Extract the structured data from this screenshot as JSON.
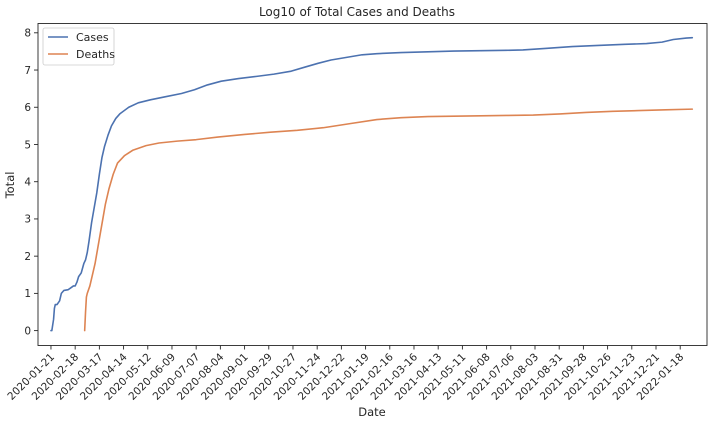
{
  "chart_data": {
    "type": "line",
    "title": "Log10 of Total Cases and Deaths",
    "xlabel": "Date",
    "ylabel": "Total",
    "x_tick_labels": [
      "2020-01-21",
      "2020-02-18",
      "2020-03-17",
      "2020-04-14",
      "2020-05-12",
      "2020-06-09",
      "2020-07-07",
      "2020-08-04",
      "2020-09-01",
      "2020-09-29",
      "2020-10-27",
      "2020-11-24",
      "2020-12-22",
      "2021-01-19",
      "2021-02-16",
      "2021-03-16",
      "2021-04-13",
      "2021-05-11",
      "2021-06-08",
      "2021-07-06",
      "2021-08-03",
      "2021-08-31",
      "2021-09-28",
      "2021-10-26",
      "2021-11-23",
      "2021-12-21",
      "2022-01-18"
    ],
    "y_ticks": [
      0,
      1,
      2,
      3,
      4,
      5,
      6,
      7,
      8
    ],
    "ylim": [
      -0.4,
      8.25
    ],
    "xlim": [
      "2020-01-06",
      "2022-02-18"
    ],
    "grid": false,
    "legend_position": "top-left",
    "series": [
      {
        "name": "Cases",
        "color": "#4c72b0",
        "points": [
          [
            "2020-01-21",
            0
          ],
          [
            "2020-01-22",
            0
          ],
          [
            "2020-01-24",
            0.3
          ],
          [
            "2020-01-25",
            0.6
          ],
          [
            "2020-01-26",
            0.7
          ],
          [
            "2020-01-28",
            0.7
          ],
          [
            "2020-01-31",
            0.8
          ],
          [
            "2020-02-02",
            1.0
          ],
          [
            "2020-02-05",
            1.08
          ],
          [
            "2020-02-10",
            1.1
          ],
          [
            "2020-02-13",
            1.15
          ],
          [
            "2020-02-16",
            1.2
          ],
          [
            "2020-02-18",
            1.2
          ],
          [
            "2020-02-20",
            1.3
          ],
          [
            "2020-02-22",
            1.45
          ],
          [
            "2020-02-25",
            1.55
          ],
          [
            "2020-02-28",
            1.8
          ],
          [
            "2020-03-01",
            1.9
          ],
          [
            "2020-03-03",
            2.1
          ],
          [
            "2020-03-05",
            2.4
          ],
          [
            "2020-03-08",
            2.9
          ],
          [
            "2020-03-11",
            3.3
          ],
          [
            "2020-03-14",
            3.7
          ],
          [
            "2020-03-17",
            4.2
          ],
          [
            "2020-03-20",
            4.65
          ],
          [
            "2020-03-23",
            4.95
          ],
          [
            "2020-03-27",
            5.25
          ],
          [
            "2020-03-31",
            5.5
          ],
          [
            "2020-04-05",
            5.7
          ],
          [
            "2020-04-10",
            5.83
          ],
          [
            "2020-04-20",
            6.0
          ],
          [
            "2020-05-01",
            6.12
          ],
          [
            "2020-05-15",
            6.2
          ],
          [
            "2020-06-01",
            6.28
          ],
          [
            "2020-06-20",
            6.37
          ],
          [
            "2020-07-05",
            6.47
          ],
          [
            "2020-07-20",
            6.6
          ],
          [
            "2020-08-05",
            6.7
          ],
          [
            "2020-08-25",
            6.77
          ],
          [
            "2020-09-15",
            6.83
          ],
          [
            "2020-10-05",
            6.89
          ],
          [
            "2020-10-25",
            6.97
          ],
          [
            "2020-11-10",
            7.08
          ],
          [
            "2020-11-25",
            7.18
          ],
          [
            "2020-12-10",
            7.27
          ],
          [
            "2020-12-28",
            7.34
          ],
          [
            "2021-01-15",
            7.41
          ],
          [
            "2021-02-01",
            7.44
          ],
          [
            "2021-03-01",
            7.47
          ],
          [
            "2021-04-01",
            7.49
          ],
          [
            "2021-05-01",
            7.51
          ],
          [
            "2021-06-01",
            7.52
          ],
          [
            "2021-07-01",
            7.53
          ],
          [
            "2021-07-20",
            7.54
          ],
          [
            "2021-08-15",
            7.58
          ],
          [
            "2021-09-15",
            7.63
          ],
          [
            "2021-10-15",
            7.66
          ],
          [
            "2021-11-15",
            7.69
          ],
          [
            "2021-12-10",
            7.71
          ],
          [
            "2021-12-28",
            7.75
          ],
          [
            "2022-01-10",
            7.82
          ],
          [
            "2022-01-25",
            7.86
          ],
          [
            "2022-02-01",
            7.87
          ]
        ]
      },
      {
        "name": "Deaths",
        "color": "#dd8452",
        "points": [
          [
            "2020-02-29",
            0
          ],
          [
            "2020-03-01",
            0.5
          ],
          [
            "2020-03-02",
            0.9
          ],
          [
            "2020-03-03",
            1.0
          ],
          [
            "2020-03-06",
            1.2
          ],
          [
            "2020-03-09",
            1.5
          ],
          [
            "2020-03-12",
            1.8
          ],
          [
            "2020-03-15",
            2.2
          ],
          [
            "2020-03-18",
            2.6
          ],
          [
            "2020-03-21",
            3.0
          ],
          [
            "2020-03-24",
            3.4
          ],
          [
            "2020-03-28",
            3.8
          ],
          [
            "2020-04-02",
            4.2
          ],
          [
            "2020-04-07",
            4.5
          ],
          [
            "2020-04-15",
            4.7
          ],
          [
            "2020-04-25",
            4.85
          ],
          [
            "2020-05-10",
            4.97
          ],
          [
            "2020-05-25",
            5.04
          ],
          [
            "2020-06-15",
            5.09
          ],
          [
            "2020-07-07",
            5.13
          ],
          [
            "2020-08-01",
            5.2
          ],
          [
            "2020-09-01",
            5.27
          ],
          [
            "2020-10-01",
            5.33
          ],
          [
            "2020-11-01",
            5.38
          ],
          [
            "2020-12-01",
            5.45
          ],
          [
            "2021-01-01",
            5.56
          ],
          [
            "2021-02-01",
            5.67
          ],
          [
            "2021-03-01",
            5.72
          ],
          [
            "2021-04-01",
            5.75
          ],
          [
            "2021-05-01",
            5.76
          ],
          [
            "2021-06-01",
            5.77
          ],
          [
            "2021-07-01",
            5.78
          ],
          [
            "2021-08-01",
            5.79
          ],
          [
            "2021-09-01",
            5.82
          ],
          [
            "2021-10-01",
            5.86
          ],
          [
            "2021-11-01",
            5.89
          ],
          [
            "2021-12-01",
            5.91
          ],
          [
            "2022-01-01",
            5.93
          ],
          [
            "2022-02-01",
            5.95
          ]
        ]
      }
    ]
  }
}
